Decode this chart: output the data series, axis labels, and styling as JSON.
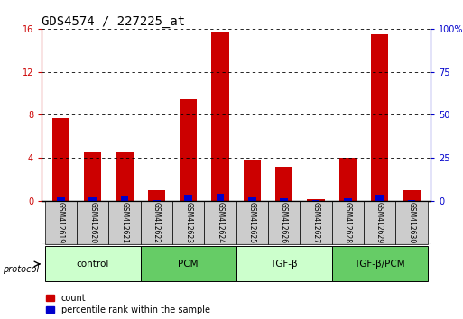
{
  "title": "GDS4574 / 227225_at",
  "samples": [
    "GSM412619",
    "GSM412620",
    "GSM412621",
    "GSM412622",
    "GSM412623",
    "GSM412624",
    "GSM412625",
    "GSM412626",
    "GSM412627",
    "GSM412628",
    "GSM412629",
    "GSM412630"
  ],
  "count_values": [
    7.7,
    4.5,
    4.5,
    1.0,
    9.5,
    15.7,
    3.8,
    3.2,
    0.2,
    4.0,
    15.5,
    1.0
  ],
  "percentile_values": [
    2.0,
    2.0,
    2.8,
    0.5,
    3.5,
    4.0,
    2.0,
    1.5,
    0.3,
    1.5,
    3.5,
    0.5
  ],
  "ylim_left": [
    0,
    16
  ],
  "ylim_right": [
    0,
    100
  ],
  "yticks_left": [
    0,
    4,
    8,
    12,
    16
  ],
  "yticks_right": [
    0,
    25,
    50,
    75,
    100
  ],
  "bar_width": 0.55,
  "count_color": "#cc0000",
  "percentile_color": "#0000cc",
  "grid_color": "#000000",
  "groups": [
    {
      "label": "control",
      "start": 0,
      "end": 3,
      "color": "#ccffcc"
    },
    {
      "label": "PCM",
      "start": 3,
      "end": 6,
      "color": "#66cc66"
    },
    {
      "label": "TGF-β",
      "start": 6,
      "end": 9,
      "color": "#ccffcc"
    },
    {
      "label": "TGF-β/PCM",
      "start": 9,
      "end": 12,
      "color": "#66cc66"
    }
  ],
  "protocol_label": "protocol",
  "legend_count_label": "count",
  "legend_percentile_label": "percentile rank within the sample",
  "sample_box_color": "#cccccc",
  "left_axis_color": "#cc0000",
  "right_axis_color": "#0000cc",
  "title_fontsize": 10,
  "tick_fontsize": 7,
  "group_fontsize": 7.5,
  "sample_fontsize": 5.5,
  "legend_fontsize": 7
}
